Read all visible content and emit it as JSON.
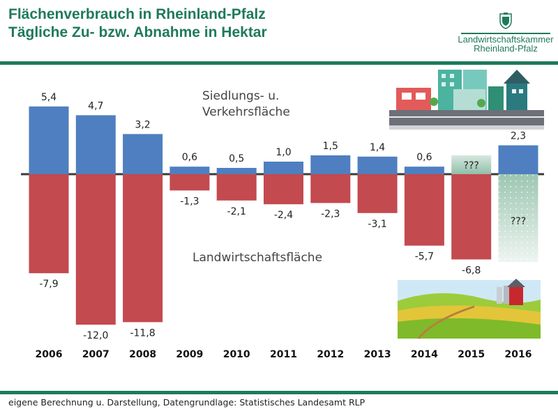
{
  "header": {
    "title_line1": "Flächenverbrauch in Rheinland-Pfalz",
    "title_line2": "Tägliche Zu- bzw. Abnahme in Hektar"
  },
  "logo": {
    "line1": "Landwirtschaftskammer",
    "line2": "Rheinland-Pfalz",
    "icon": "coat-of-arms-icon"
  },
  "footer": {
    "text": "eigene Berechnung u. Darstellung, Datengrundlage: Statistisches Landesamt RLP"
  },
  "colors": {
    "brand_green": "#1f7a5c",
    "positive_bar": "#4f7fc0",
    "negative_bar": "#c34a4f"
  },
  "chart_data": {
    "type": "bar",
    "categories": [
      "2006",
      "2007",
      "2008",
      "2009",
      "2010",
      "2011",
      "2012",
      "2013",
      "2014",
      "2015",
      "2016"
    ],
    "series": [
      {
        "name": "Siedlungs- u. Verkehrsfläche",
        "values": [
          5.4,
          4.7,
          3.2,
          0.6,
          0.5,
          1.0,
          1.5,
          1.4,
          0.6,
          null,
          2.3
        ],
        "labels": [
          "5,4",
          "4,7",
          "3,2",
          "0,6",
          "0,5",
          "1,0",
          "1,5",
          "1,4",
          "0,6",
          "???",
          "2,3"
        ]
      },
      {
        "name": "Landwirtschaftsfläche",
        "values": [
          -7.9,
          -12.0,
          -11.8,
          -1.3,
          -2.1,
          -2.4,
          -2.3,
          -3.1,
          -5.7,
          -6.8,
          null
        ],
        "labels": [
          "-7,9",
          "-12,0",
          "-11,8",
          "-1,3",
          "-2,1",
          "-2,4",
          "-2,3",
          "-3,1",
          "-5,7",
          "-6,8",
          "???"
        ]
      }
    ],
    "annotations": {
      "positive_label_line1": "Siedlungs- u.",
      "positive_label_line2": "Verkehrsfläche",
      "negative_label": "Landwirtschaftsfläche"
    },
    "unknown_placeholder": "???",
    "grid": false
  },
  "illustrations": {
    "top_right": "city-buildings-icon",
    "bottom_right": "farm-field-barn-icon"
  }
}
